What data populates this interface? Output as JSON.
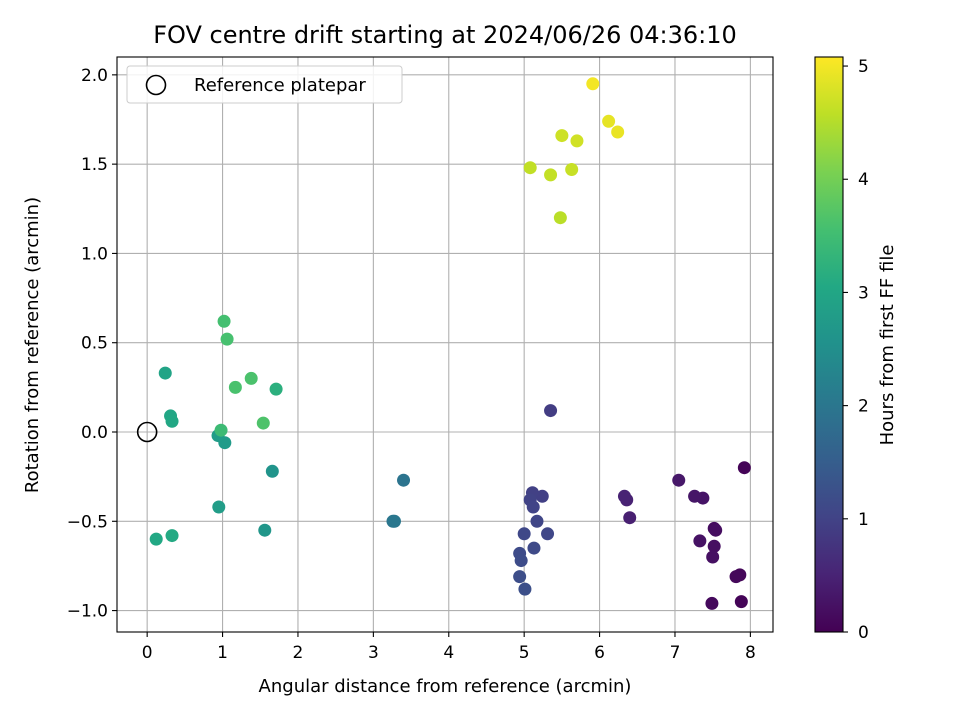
{
  "chart_data": {
    "type": "scatter",
    "title": "FOV centre drift starting at 2024/06/26 04:36:10",
    "xlabel": "Angular distance from reference (arcmin)",
    "ylabel": "Rotation from reference (arcmin)",
    "xlim": [
      -0.4,
      8.3
    ],
    "ylim": [
      -1.12,
      2.1
    ],
    "xticks": [
      0,
      1,
      2,
      3,
      4,
      5,
      6,
      7,
      8
    ],
    "yticks": [
      -1.0,
      -0.5,
      0.0,
      0.5,
      1.0,
      1.5,
      2.0
    ],
    "xtick_labels": [
      "0",
      "1",
      "2",
      "3",
      "4",
      "5",
      "6",
      "7",
      "8"
    ],
    "ytick_labels": [
      "−1.0",
      "−0.5",
      "0.0",
      "0.5",
      "1.0",
      "1.5",
      "2.0"
    ],
    "grid": true,
    "legend": {
      "placement": "upper-left",
      "entries": [
        {
          "label": "Reference platepar",
          "marker": "open-circle"
        }
      ]
    },
    "reference_point": {
      "x": 0,
      "y": 0
    },
    "colorbar": {
      "label": "Hours from first FF file",
      "colormap": "viridis",
      "range": [
        0,
        5.08
      ],
      "ticks": [
        0,
        1,
        2,
        3,
        4,
        5
      ],
      "tick_labels": [
        "0",
        "1",
        "2",
        "3",
        "4",
        "5"
      ]
    },
    "points": [
      {
        "x": 7.92,
        "y": -0.2,
        "c": 0.05
      },
      {
        "x": 7.88,
        "y": -0.95,
        "c": 0.05
      },
      {
        "x": 7.86,
        "y": -0.8,
        "c": 0.08
      },
      {
        "x": 7.81,
        "y": -0.81,
        "c": 0.1
      },
      {
        "x": 7.49,
        "y": -0.96,
        "c": 0.12
      },
      {
        "x": 7.52,
        "y": -0.54,
        "c": 0.15
      },
      {
        "x": 7.54,
        "y": -0.55,
        "c": 0.18
      },
      {
        "x": 7.52,
        "y": -0.64,
        "c": 0.2
      },
      {
        "x": 7.5,
        "y": -0.7,
        "c": 0.22
      },
      {
        "x": 7.33,
        "y": -0.61,
        "c": 0.25
      },
      {
        "x": 7.37,
        "y": -0.37,
        "c": 0.28
      },
      {
        "x": 7.26,
        "y": -0.36,
        "c": 0.3
      },
      {
        "x": 7.05,
        "y": -0.27,
        "c": 0.33
      },
      {
        "x": 6.4,
        "y": -0.48,
        "c": 0.45
      },
      {
        "x": 6.36,
        "y": -0.38,
        "c": 0.48
      },
      {
        "x": 6.33,
        "y": -0.36,
        "c": 0.5
      },
      {
        "x": 5.35,
        "y": 0.12,
        "c": 0.9
      },
      {
        "x": 5.24,
        "y": -0.36,
        "c": 0.95
      },
      {
        "x": 5.11,
        "y": -0.34,
        "c": 0.97
      },
      {
        "x": 5.08,
        "y": -0.38,
        "c": 1.0
      },
      {
        "x": 5.12,
        "y": -0.42,
        "c": 1.02
      },
      {
        "x": 5.17,
        "y": -0.5,
        "c": 1.05
      },
      {
        "x": 5.31,
        "y": -0.57,
        "c": 1.07
      },
      {
        "x": 5.0,
        "y": -0.57,
        "c": 1.1
      },
      {
        "x": 5.13,
        "y": -0.65,
        "c": 1.12
      },
      {
        "x": 4.94,
        "y": -0.68,
        "c": 1.15
      },
      {
        "x": 4.96,
        "y": -0.72,
        "c": 1.17
      },
      {
        "x": 4.94,
        "y": -0.81,
        "c": 1.2
      },
      {
        "x": 5.01,
        "y": -0.88,
        "c": 1.22
      },
      {
        "x": 3.4,
        "y": -0.27,
        "c": 1.95
      },
      {
        "x": 3.26,
        "y": -0.5,
        "c": 2.0
      },
      {
        "x": 3.28,
        "y": -0.5,
        "c": 2.02
      },
      {
        "x": 1.66,
        "y": -0.22,
        "c": 2.6
      },
      {
        "x": 1.56,
        "y": -0.55,
        "c": 2.65
      },
      {
        "x": 1.03,
        "y": -0.06,
        "c": 2.75
      },
      {
        "x": 0.94,
        "y": -0.02,
        "c": 2.78
      },
      {
        "x": 0.95,
        "y": -0.42,
        "c": 2.8
      },
      {
        "x": 0.24,
        "y": 0.33,
        "c": 2.95
      },
      {
        "x": 0.31,
        "y": 0.09,
        "c": 3.0
      },
      {
        "x": 0.33,
        "y": 0.06,
        "c": 3.02
      },
      {
        "x": 0.12,
        "y": -0.6,
        "c": 3.05
      },
      {
        "x": 0.33,
        "y": -0.58,
        "c": 3.08
      },
      {
        "x": 0.98,
        "y": 0.01,
        "c": 3.45
      },
      {
        "x": 1.71,
        "y": 0.24,
        "c": 3.2
      },
      {
        "x": 1.02,
        "y": 0.62,
        "c": 3.55
      },
      {
        "x": 1.06,
        "y": 0.52,
        "c": 3.58
      },
      {
        "x": 1.17,
        "y": 0.25,
        "c": 3.6
      },
      {
        "x": 1.38,
        "y": 0.3,
        "c": 3.62
      },
      {
        "x": 1.54,
        "y": 0.05,
        "c": 3.65
      },
      {
        "x": 5.48,
        "y": 1.2,
        "c": 4.55
      },
      {
        "x": 5.08,
        "y": 1.48,
        "c": 4.6
      },
      {
        "x": 5.35,
        "y": 1.44,
        "c": 4.62
      },
      {
        "x": 5.63,
        "y": 1.47,
        "c": 4.65
      },
      {
        "x": 5.5,
        "y": 1.66,
        "c": 4.7
      },
      {
        "x": 5.7,
        "y": 1.63,
        "c": 4.72
      },
      {
        "x": 6.12,
        "y": 1.74,
        "c": 4.9
      },
      {
        "x": 6.24,
        "y": 1.68,
        "c": 4.92
      },
      {
        "x": 5.91,
        "y": 1.95,
        "c": 5.0
      }
    ]
  }
}
